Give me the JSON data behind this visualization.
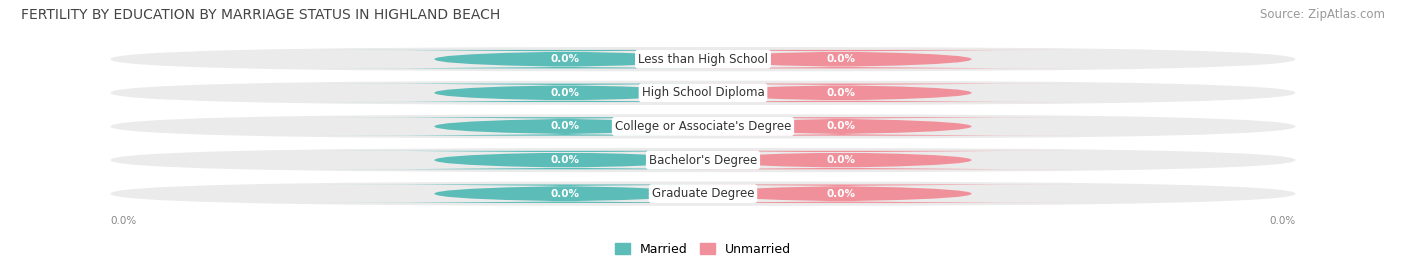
{
  "title": "FERTILITY BY EDUCATION BY MARRIAGE STATUS IN HIGHLAND BEACH",
  "source": "Source: ZipAtlas.com",
  "categories": [
    "Less than High School",
    "High School Diploma",
    "College or Associate's Degree",
    "Bachelor's Degree",
    "Graduate Degree"
  ],
  "married_values": [
    0.0,
    0.0,
    0.0,
    0.0,
    0.0
  ],
  "unmarried_values": [
    0.0,
    0.0,
    0.0,
    0.0,
    0.0
  ],
  "married_color": "#5BBCB8",
  "unmarried_color": "#F0909A",
  "row_bg_color": "#EBEBEB",
  "label_color": "#333333",
  "title_color": "#444444",
  "source_color": "#999999",
  "legend_married": "Married",
  "legend_unmarried": "Unmarried",
  "title_fontsize": 10,
  "source_fontsize": 8.5,
  "category_fontsize": 8.5,
  "value_fontsize": 7.5,
  "legend_fontsize": 9
}
